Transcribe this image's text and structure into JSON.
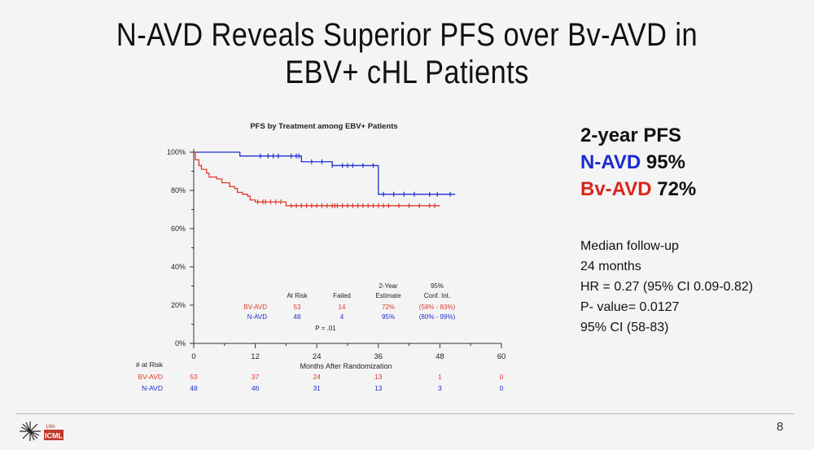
{
  "slide": {
    "title_line1": "N-AVD Reveals Superior PFS over Bv-AVD in",
    "title_line2": "EBV+ cHL Patients",
    "page_number": "8",
    "logo_text_top": "18th",
    "logo_text_bottom": "ICML"
  },
  "pfs_summary": {
    "heading": "2-year PFS",
    "n_avd_label": "N-AVD",
    "n_avd_value": "95%",
    "bv_avd_label": "Bv-AVD",
    "bv_avd_value": "72%"
  },
  "stats": {
    "line1": "Median follow-up",
    "line2": "24 months",
    "line3": "HR =  0.27 (95% CI 0.09-0.82)",
    "line4": "P- value= 0.0127",
    "line5": "95% CI (58-83)"
  },
  "chart_data": {
    "type": "line",
    "title": "PFS by Treatment among EBV+ Patients",
    "xlabel": "Months After Randomization",
    "ylabel": "",
    "xlim": [
      0,
      60
    ],
    "ylim": [
      0,
      100
    ],
    "x_ticks": [
      "0",
      "12",
      "24",
      "36",
      "48",
      "60"
    ],
    "y_ticks": [
      "0%",
      "20%",
      "40%",
      "60%",
      "80%",
      "100%"
    ],
    "colors": {
      "n_avd": "#1f2fd0",
      "bv_avd": "#e0392e"
    },
    "series": [
      {
        "name": "N-AVD",
        "color": "#1f2fd0",
        "steps": [
          [
            0,
            100
          ],
          [
            9,
            98
          ],
          [
            21,
            95
          ],
          [
            27,
            93
          ],
          [
            36,
            78
          ],
          [
            51,
            78
          ]
        ],
        "censor_times": [
          13,
          14.5,
          15.5,
          16.5,
          19,
          20,
          20.5,
          23,
          25,
          27,
          29,
          30,
          31,
          33,
          35,
          37,
          39,
          41,
          43,
          46,
          47.5,
          50
        ]
      },
      {
        "name": "BV-AVD",
        "color": "#e0392e",
        "steps": [
          [
            0,
            100
          ],
          [
            0.3,
            96
          ],
          [
            1,
            93
          ],
          [
            1.5,
            91
          ],
          [
            2.5,
            89
          ],
          [
            3,
            87
          ],
          [
            4.5,
            86
          ],
          [
            5.5,
            84
          ],
          [
            7,
            82
          ],
          [
            8,
            81
          ],
          [
            8.5,
            79
          ],
          [
            9.5,
            78
          ],
          [
            10.5,
            77
          ],
          [
            11,
            75
          ],
          [
            12,
            74
          ],
          [
            18,
            72
          ],
          [
            48,
            72
          ]
        ],
        "censor_times": [
          12.5,
          13.5,
          14,
          15,
          16,
          17,
          19,
          20,
          21,
          22,
          23,
          24,
          25,
          26,
          27,
          27.5,
          28,
          29,
          30,
          31,
          32,
          33,
          34,
          35,
          36,
          37,
          38,
          40,
          42,
          44,
          46,
          47
        ]
      }
    ],
    "summary_table": {
      "headers": [
        "At Risk",
        "Failed",
        "2-Year Estimate",
        "95% Conf. Int."
      ],
      "header_top": [
        "",
        "",
        "2-Year",
        "95%"
      ],
      "header_bottom": [
        "At Risk",
        "Failed",
        "Estimate",
        "Conf. Int."
      ],
      "rows": [
        {
          "label": "BV-AVD",
          "at_risk": "53",
          "failed": "14",
          "estimate": "72%",
          "ci": "(58% - 83%)"
        },
        {
          "label": "N-AVD",
          "at_risk": "48",
          "failed": "4",
          "estimate": "95%",
          "ci": "(80% - 99%)"
        }
      ],
      "p_value": "P = .01"
    },
    "number_at_risk": {
      "label": "# at Risk",
      "rows": [
        {
          "label": "BV-AVD",
          "values": [
            "53",
            "37",
            "24",
            "13",
            "1",
            "0"
          ]
        },
        {
          "label": "N-AVD",
          "values": [
            "48",
            "46",
            "31",
            "13",
            "3",
            "0"
          ]
        }
      ]
    }
  }
}
